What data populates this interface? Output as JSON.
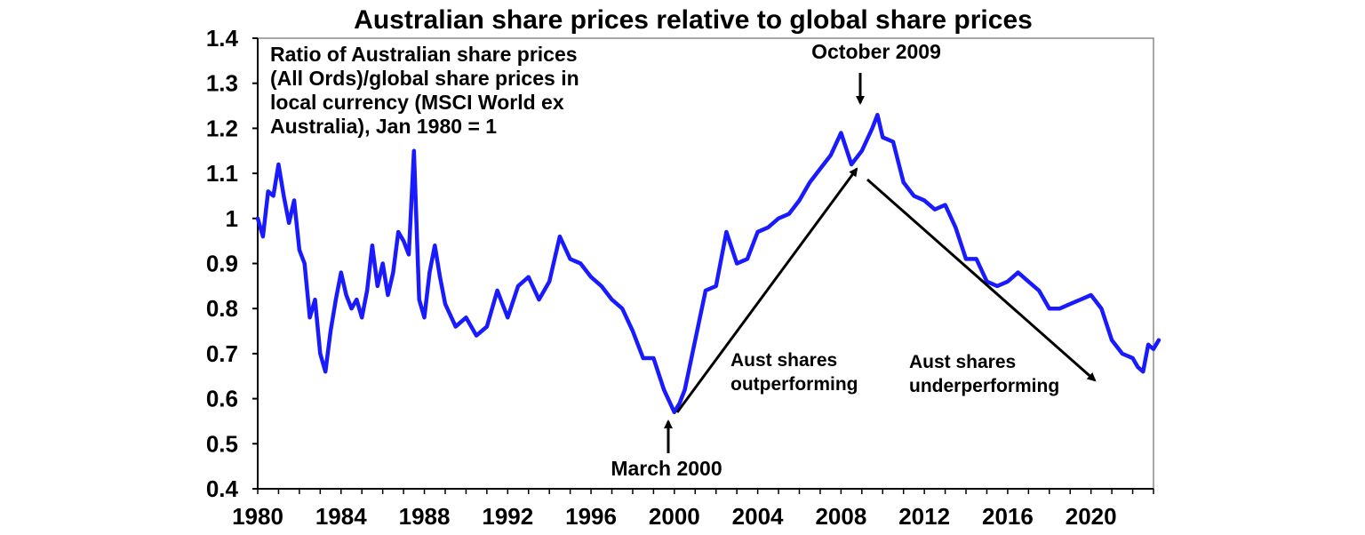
{
  "chart_data": {
    "type": "line",
    "title": "Australian share prices relative to global share prices",
    "xlabel": "",
    "ylabel": "",
    "xlim": [
      1980,
      2023
    ],
    "ylim": [
      0.4,
      1.4
    ],
    "x_ticks": [
      "1980",
      "1984",
      "1988",
      "1992",
      "1996",
      "2000",
      "2004",
      "2008",
      "2012",
      "2016",
      "2020"
    ],
    "y_ticks": [
      "0.4",
      "0.5",
      "0.6",
      "0.7",
      "0.8",
      "0.9",
      "1",
      "1.1",
      "1.2",
      "1.3",
      "1.4"
    ],
    "note_lines": [
      "Ratio of Australian share prices",
      "(All Ords)/global share prices in",
      "local currency (MSCI World ex",
      "Australia), Jan 1980 = 1"
    ],
    "line_color": "#1a1aff",
    "series": [
      {
        "x": [
          1980.0,
          1980.25,
          1980.5,
          1980.75,
          1981.0,
          1981.25,
          1981.5,
          1981.75,
          1982.0,
          1982.25,
          1982.5,
          1982.75,
          1983.0,
          1983.25,
          1983.5,
          1983.75,
          1984.0,
          1984.25,
          1984.5,
          1984.75,
          1985.0,
          1985.25,
          1985.5,
          1985.75,
          1986.0,
          1986.25,
          1986.5,
          1986.75,
          1987.0,
          1987.25,
          1987.5,
          1987.75,
          1988.0,
          1988.25,
          1988.5,
          1988.75,
          1989.0,
          1989.5,
          1990.0,
          1990.5,
          1991.0,
          1991.5,
          1992.0,
          1992.5,
          1993.0,
          1993.5,
          1994.0,
          1994.5,
          1995.0,
          1995.5,
          1996.0,
          1996.5,
          1997.0,
          1997.5,
          1998.0,
          1998.5,
          1999.0,
          1999.5,
          2000.0,
          2000.25,
          2000.5,
          2001.0,
          2001.5,
          2002.0,
          2002.5,
          2003.0,
          2003.5,
          2004.0,
          2004.5,
          2005.0,
          2005.5,
          2006.0,
          2006.5,
          2007.0,
          2007.5,
          2008.0,
          2008.5,
          2009.0,
          2009.5,
          2009.75,
          2010.0,
          2010.5,
          2011.0,
          2011.5,
          2012.0,
          2012.5,
          2013.0,
          2013.5,
          2014.0,
          2014.5,
          2015.0,
          2015.5,
          2016.0,
          2016.5,
          2017.0,
          2017.5,
          2018.0,
          2018.5,
          2019.0,
          2019.5,
          2020.0,
          2020.5,
          2021.0,
          2021.5,
          2022.0,
          2022.25,
          2022.5,
          2022.75,
          2023.0,
          2023.25
        ],
        "y": [
          1.0,
          0.96,
          1.06,
          1.05,
          1.12,
          1.05,
          0.99,
          1.04,
          0.93,
          0.9,
          0.78,
          0.82,
          0.7,
          0.66,
          0.75,
          0.82,
          0.88,
          0.83,
          0.8,
          0.82,
          0.78,
          0.84,
          0.94,
          0.85,
          0.9,
          0.83,
          0.88,
          0.97,
          0.95,
          0.92,
          1.15,
          0.82,
          0.78,
          0.88,
          0.94,
          0.87,
          0.81,
          0.76,
          0.78,
          0.74,
          0.76,
          0.84,
          0.78,
          0.85,
          0.87,
          0.82,
          0.86,
          0.96,
          0.91,
          0.9,
          0.87,
          0.85,
          0.82,
          0.8,
          0.75,
          0.69,
          0.69,
          0.62,
          0.57,
          0.59,
          0.62,
          0.73,
          0.84,
          0.85,
          0.97,
          0.9,
          0.91,
          0.97,
          0.98,
          1.0,
          1.01,
          1.04,
          1.08,
          1.11,
          1.14,
          1.19,
          1.12,
          1.15,
          1.2,
          1.23,
          1.18,
          1.17,
          1.08,
          1.05,
          1.04,
          1.02,
          1.03,
          0.98,
          0.91,
          0.91,
          0.86,
          0.85,
          0.86,
          0.88,
          0.86,
          0.84,
          0.8,
          0.8,
          0.81,
          0.82,
          0.83,
          0.8,
          0.73,
          0.7,
          0.69,
          0.67,
          0.66,
          0.72,
          0.71,
          0.73
        ]
      }
    ],
    "annotations": {
      "peak_label": "October 2009",
      "trough_label": "March 2000",
      "outperform_line1": "Aust shares",
      "outperform_line2": "outperforming",
      "underperform_line1": "Aust shares",
      "underperform_line2": "underperforming"
    }
  }
}
